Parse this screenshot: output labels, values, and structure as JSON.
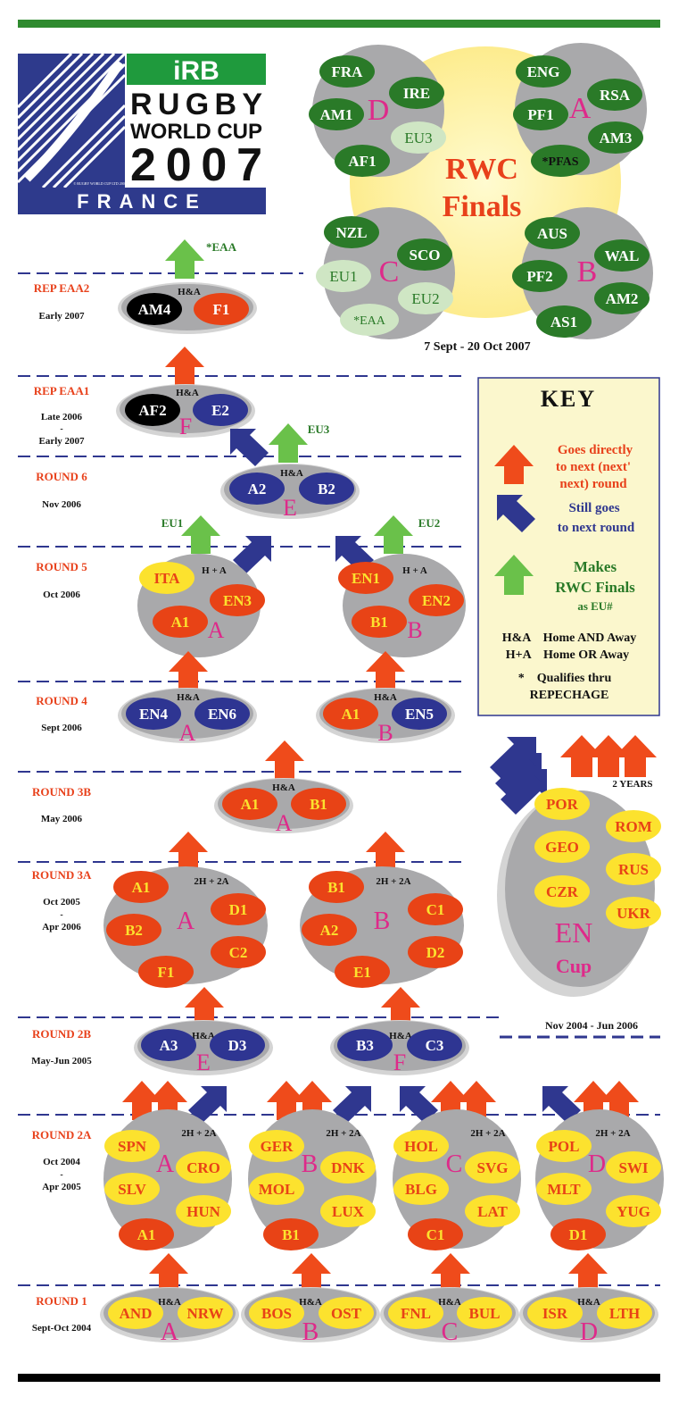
{
  "logo": {
    "irb": "iRB",
    "line1": "RUGBY",
    "line2": "WORLD CUP",
    "year": "2007",
    "country": "FRANCE",
    "tiny": "© RUGBY WORLD CUP LTD 2003"
  },
  "finals": {
    "title1": "RWC",
    "title2": "Finals",
    "dates": "7 Sept - 20 Oct  2007",
    "pools": [
      {
        "letter": "D",
        "teams": [
          "FRA",
          "IRE",
          "AM1",
          "EU3",
          "AF1"
        ]
      },
      {
        "letter": "A",
        "teams": [
          "ENG",
          "RSA",
          "PF1",
          "AM3",
          "*PFAS"
        ]
      },
      {
        "letter": "C",
        "teams": [
          "NZL",
          "SCO",
          "EU1",
          "EU2",
          "*EAA"
        ]
      },
      {
        "letter": "B",
        "teams": [
          "AUS",
          "WAL",
          "PF2",
          "AM2",
          "AS1"
        ]
      }
    ]
  },
  "rounds": [
    {
      "name": "REP EAA2",
      "dates": [
        "Early 2007"
      ]
    },
    {
      "name": "REP EAA1",
      "dates": [
        "Late 2006",
        "-",
        "Early 2007"
      ]
    },
    {
      "name": "ROUND 6",
      "dates": [
        "Nov 2006"
      ]
    },
    {
      "name": "ROUND 5",
      "dates": [
        "Oct 2006"
      ]
    },
    {
      "name": "ROUND 4",
      "dates": [
        "Sept 2006"
      ]
    },
    {
      "name": "ROUND 3B",
      "dates": [
        "May 2006"
      ]
    },
    {
      "name": "ROUND 3A",
      "dates": [
        "Oct 2005",
        "-",
        "Apr 2006"
      ]
    },
    {
      "name": "ROUND 2B",
      "dates": [
        "May-Jun 2005"
      ]
    },
    {
      "name": "ROUND 2A",
      "dates": [
        "Oct 2004",
        "-",
        "Apr 2005"
      ]
    },
    {
      "name": "ROUND 1",
      "dates": [
        "Sept-Oct 2004"
      ]
    }
  ],
  "ties": {
    "eaa2": {
      "format": "H&A",
      "teams": [
        "AM4",
        "F1"
      ],
      "above": "*EAA"
    },
    "eaa1": {
      "format": "H&A",
      "teams": [
        "AF2",
        "E2"
      ],
      "letter": "F"
    },
    "r6": {
      "format": "H&A",
      "teams": [
        "A2",
        "B2"
      ],
      "letter": "E",
      "above": "EU3"
    },
    "r5": [
      {
        "format": "H + A",
        "teams": [
          "ITA",
          "EN3",
          "A1"
        ],
        "letter": "A",
        "above": "EU1"
      },
      {
        "format": "H + A",
        "teams": [
          "EN1",
          "EN2",
          "B1"
        ],
        "letter": "B",
        "above": "EU2"
      }
    ],
    "r4": [
      {
        "format": "H&A",
        "teams": [
          "EN4",
          "EN6"
        ],
        "letter": "A"
      },
      {
        "format": "H&A",
        "teams": [
          "A1",
          "EN5"
        ],
        "letter": "B"
      }
    ],
    "r3b": {
      "format": "H&A",
      "teams": [
        "A1",
        "B1"
      ],
      "letter": "A"
    },
    "r3a": [
      {
        "format": "2H + 2A",
        "teams": [
          "A1",
          "D1",
          "B2",
          "C2",
          "F1"
        ],
        "letter": "A"
      },
      {
        "format": "2H + 2A",
        "teams": [
          "B1",
          "C1",
          "A2",
          "D2",
          "E1"
        ],
        "letter": "B"
      }
    ],
    "r2b": [
      {
        "format": "H&A",
        "teams": [
          "A3",
          "D3"
        ],
        "letter": "E"
      },
      {
        "format": "H&A",
        "teams": [
          "B3",
          "C3"
        ],
        "letter": "F"
      }
    ],
    "r2a": [
      {
        "format": "2H + 2A",
        "teams": [
          "SPN",
          "CRO",
          "SLV",
          "HUN",
          "A1"
        ],
        "letter": "A"
      },
      {
        "format": "2H + 2A",
        "teams": [
          "GER",
          "DNK",
          "MOL",
          "LUX",
          "B1"
        ],
        "letter": "B"
      },
      {
        "format": "2H + 2A",
        "teams": [
          "HOL",
          "SVG",
          "BLG",
          "LAT",
          "C1"
        ],
        "letter": "C"
      },
      {
        "format": "2H + 2A",
        "teams": [
          "POL",
          "SWI",
          "MLT",
          "YUG",
          "D1"
        ],
        "letter": "D"
      }
    ],
    "r1": [
      {
        "format": "H&A",
        "teams": [
          "AND",
          "NRW"
        ],
        "letter": "A"
      },
      {
        "format": "H&A",
        "teams": [
          "BOS",
          "OST"
        ],
        "letter": "B"
      },
      {
        "format": "H&A",
        "teams": [
          "FNL",
          "BUL"
        ],
        "letter": "C"
      },
      {
        "format": "H&A",
        "teams": [
          "ISR",
          "LTH"
        ],
        "letter": "D"
      }
    ]
  },
  "en_cup": {
    "teams": [
      "POR",
      "ROM",
      "GEO",
      "RUS",
      "CZR",
      "UKR"
    ],
    "title1": "EN",
    "title2": "Cup",
    "years": "2 YEARS",
    "dates": "Nov 2004  - Jun 2006"
  },
  "key": {
    "title": "KEY",
    "red": [
      "Goes directly",
      "to next (next'",
      "next) round"
    ],
    "blue": [
      "Still goes",
      "to next round"
    ],
    "green": [
      "Makes",
      "RWC Finals",
      "as EU#"
    ],
    "ha": "H&A    Home AND Away",
    "hpa": "H+A    Home OR Away",
    "star1": "*    Qualifies thru",
    "star2": "REPECHAGE"
  },
  "colors": {
    "pool_grey": "#a9a9ab",
    "oval_shadow": "#d4d4d4",
    "yellow": "#fce22e",
    "red": "#e84316",
    "navy": "#2e3592",
    "dgreen": "#2a7a28",
    "lgreen": "#cfe6c4",
    "black": "#000000",
    "arrow_red": "#ef4b1b",
    "arrow_blue": "#2f378f",
    "arrow_green": "#6ac14a",
    "label_red": "#e8411b",
    "magenta": "#de2a8a",
    "key_bg": "#fbf7cd",
    "finals_yellow": "#fdf2a0",
    "top_bar": "#2f8a2f",
    "logo_green": "#1f9a3d",
    "logo_navy": "#2e3a8c"
  }
}
